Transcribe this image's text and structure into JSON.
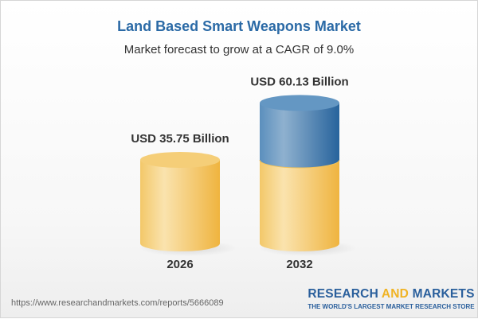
{
  "header": {
    "title": "Land Based Smart Weapons Market",
    "subtitle": "Market forecast to grow at a CAGR of 9.0%"
  },
  "chart_data": {
    "type": "bar",
    "style": "3d-cylinder",
    "categories": [
      "2026",
      "2032"
    ],
    "values": [
      35.75,
      60.13
    ],
    "data_labels": [
      "USD 35.75 Billion",
      "USD 60.13 Billion"
    ],
    "unit": "USD Billion",
    "colors": {
      "base": "#f2c25a",
      "growth": "#3f79ad"
    }
  },
  "footer": {
    "url": "https://www.researchandmarkets.com/reports/5666089",
    "logo_part1": "RESEARCH ",
    "logo_part2": "AND",
    "logo_part3": " MARKETS",
    "tagline": "THE WORLD'S LARGEST MARKET RESEARCH STORE"
  }
}
